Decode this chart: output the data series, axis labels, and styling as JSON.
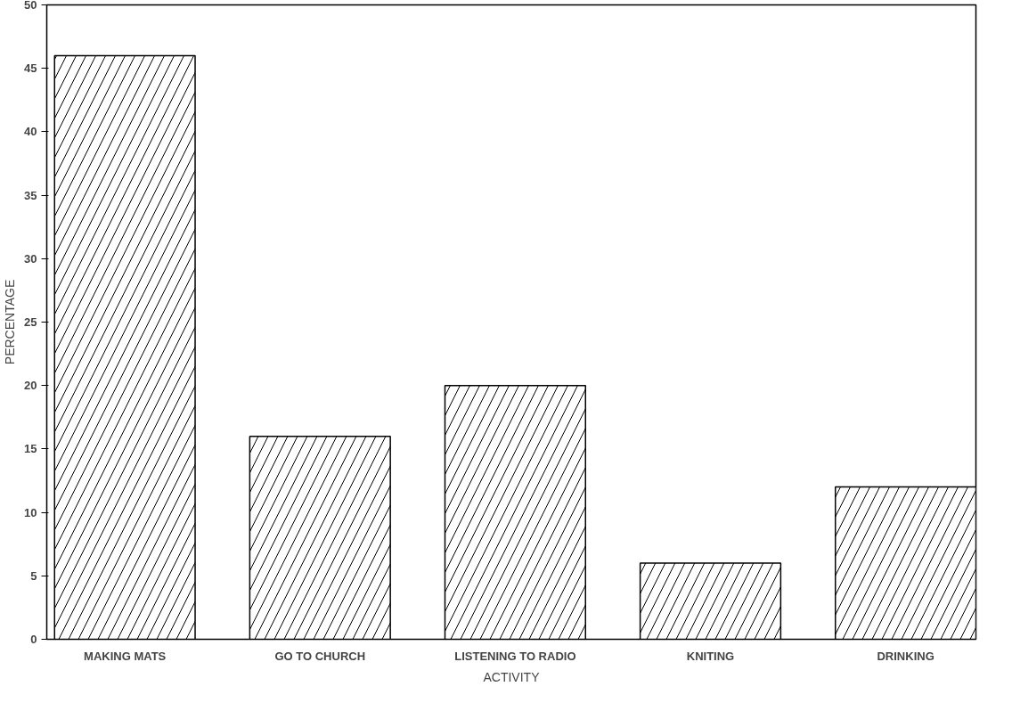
{
  "chart_data": {
    "type": "bar",
    "xlabel": "ACTIVITY",
    "ylabel": "PERCENTAGE",
    "categories": [
      "MAKING MATS",
      "GO TO CHURCH",
      "LISTENING TO RADIO",
      "KNITING",
      "DRINKING"
    ],
    "values": [
      46,
      16,
      20,
      6,
      12
    ],
    "color": "#000000",
    "ylim": [
      0,
      50
    ],
    "yticks": [
      0,
      5,
      10,
      15,
      20,
      25,
      30,
      35,
      40,
      45,
      50
    ],
    "grid": false
  }
}
